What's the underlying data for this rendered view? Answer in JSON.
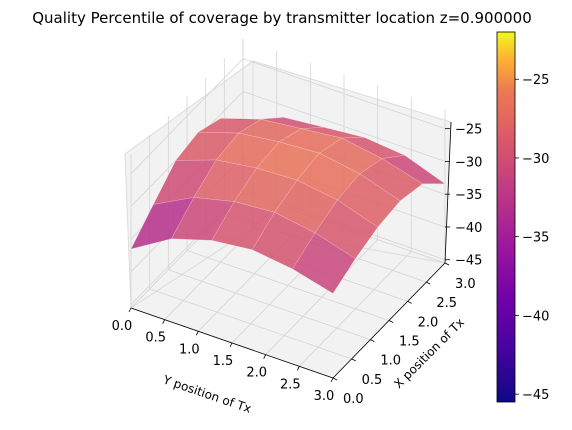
{
  "chart_data": {
    "type": "surface",
    "title": "Quality Percentile of coverage by transmitter location z=0.900000",
    "xlabel": "Y position of Tx",
    "ylabel": "X position of Tx",
    "zlabel": "",
    "colormap": "plasma",
    "y_position_ticks": [
      "0.0",
      "0.5",
      "1.0",
      "1.5",
      "2.0",
      "2.5",
      "3.0"
    ],
    "x_position_ticks": [
      "0.0",
      "0.5",
      "1.0",
      "1.5",
      "2.0",
      "2.5",
      "3.0"
    ],
    "z_ticks": [
      "-45",
      "-40",
      "-35",
      "-30",
      "-25"
    ],
    "colorbar_ticks": [
      "-25",
      "-30",
      "-35",
      "-40",
      "-45"
    ],
    "xlim": [
      0,
      3
    ],
    "ylim": [
      0,
      3
    ],
    "zlim": [
      -45,
      -22
    ],
    "clim": [
      -45.5,
      -22
    ],
    "grid": true,
    "y_position_values": [
      0,
      0.6,
      1.2,
      1.8,
      2.4,
      3.0
    ],
    "x_position_values": [
      0,
      0.6,
      1.2,
      1.8,
      2.4,
      3.0
    ],
    "z_values": [
      [
        -36.5,
        -33.2,
        -30.0,
        -29.2,
        -30.6,
        -34.4
      ],
      [
        -32.8,
        -30.0,
        -27.8,
        -27.2,
        -28.6,
        -31.8
      ],
      [
        -30.9,
        -28.5,
        -26.9,
        -26.4,
        -27.9,
        -31.2
      ],
      [
        -30.2,
        -28.0,
        -26.6,
        -26.0,
        -27.2,
        -30.6
      ],
      [
        -31.0,
        -29.0,
        -27.5,
        -27.0,
        -28.2,
        -31.2
      ],
      [
        -32.6,
        -30.8,
        -29.5,
        -29.0,
        -29.9,
        -33.4
      ]
    ]
  }
}
